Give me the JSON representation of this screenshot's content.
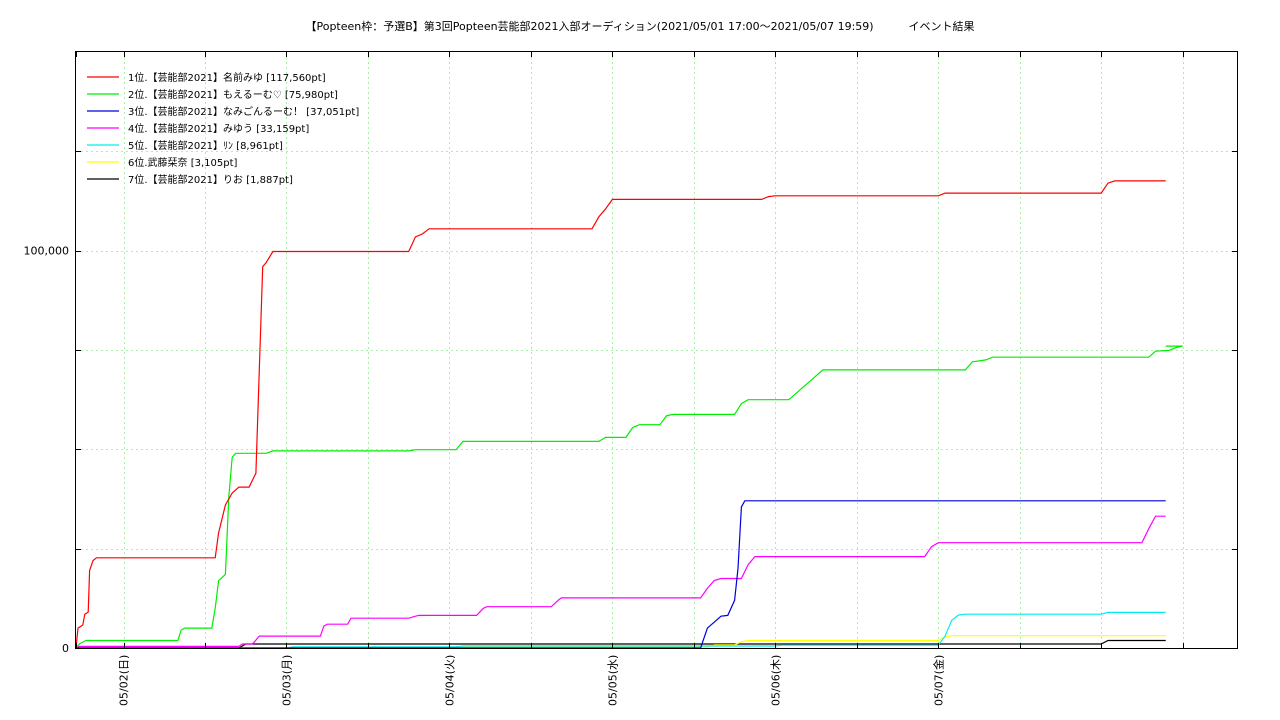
{
  "chart_data": {
    "type": "line",
    "title": "【Popteen枠：予選B】第3回Popteen芸能部2021入部オーディション(2021/05/01 17:00〜2021/05/07 19:59)          イベント結果",
    "xlabel": "",
    "ylabel": "",
    "x_unit": "hours since 2021/05/01 17:00",
    "xlim": [
      0,
      171
    ],
    "ylim": [
      0,
      150000
    ],
    "y_ticks": [
      {
        "value": 0,
        "label": "0"
      },
      {
        "value": 100000,
        "label": "100,000"
      }
    ],
    "y_minor_ticks": [
      25000,
      50000,
      75000,
      125000
    ],
    "x_ticks": [
      {
        "value": 7,
        "label": "05/02(日)"
      },
      {
        "value": 31,
        "label": "05/03(月)"
      },
      {
        "value": 55,
        "label": "05/04(火)"
      },
      {
        "value": 79,
        "label": "05/05(水)"
      },
      {
        "value": 103,
        "label": "05/06(木)"
      },
      {
        "value": 127,
        "label": "05/07(金)"
      }
    ],
    "x_minor_ticks": [
      0,
      19,
      43,
      67,
      91,
      115,
      139,
      151,
      163
    ],
    "grid": true,
    "legend_position": "top-left",
    "series": [
      {
        "name": "1位.【芸能部2021】名前みゆ [117,560pt]",
        "color": "#ff0000",
        "points": [
          [
            0,
            0
          ],
          [
            0.3,
            5000
          ],
          [
            1,
            5800
          ],
          [
            1.3,
            8500
          ],
          [
            1.8,
            9000
          ],
          [
            2,
            19500
          ],
          [
            2.5,
            22000
          ],
          [
            3,
            22700
          ],
          [
            20.5,
            22700
          ],
          [
            21,
            29000
          ],
          [
            22,
            36000
          ],
          [
            23,
            39000
          ],
          [
            24,
            40500
          ],
          [
            25.5,
            40500
          ],
          [
            26.5,
            44000
          ],
          [
            27,
            70000
          ],
          [
            27.5,
            96000
          ],
          [
            28,
            97000
          ],
          [
            29,
            99800
          ],
          [
            49,
            99800
          ],
          [
            50,
            103500
          ],
          [
            51,
            104200
          ],
          [
            52,
            105500
          ],
          [
            76,
            105500
          ],
          [
            77,
            108500
          ],
          [
            78,
            110500
          ],
          [
            79,
            112900
          ],
          [
            101,
            112900
          ],
          [
            102,
            113600
          ],
          [
            103,
            113800
          ],
          [
            127,
            113800
          ],
          [
            128,
            114500
          ],
          [
            151,
            114500
          ],
          [
            152,
            117000
          ],
          [
            153,
            117560
          ],
          [
            160.5,
            117560
          ]
        ]
      },
      {
        "name": "2位.【芸能部2021】もえるーむ♡ [75,980pt]",
        "color": "#00ee00",
        "points": [
          [
            0,
            0
          ],
          [
            0.5,
            1000
          ],
          [
            1,
            1500
          ],
          [
            1.5,
            1900
          ],
          [
            15,
            1900
          ],
          [
            15.5,
            4500
          ],
          [
            16,
            5000
          ],
          [
            20,
            5000
          ],
          [
            20.5,
            10000
          ],
          [
            21,
            17000
          ],
          [
            22,
            18500
          ],
          [
            22.5,
            38000
          ],
          [
            23,
            48000
          ],
          [
            23.5,
            49000
          ],
          [
            28,
            49000
          ],
          [
            29,
            49600
          ],
          [
            49,
            49600
          ],
          [
            50,
            49900
          ],
          [
            56,
            49900
          ],
          [
            57,
            52000
          ],
          [
            77,
            52000
          ],
          [
            78,
            53000
          ],
          [
            81,
            53000
          ],
          [
            82,
            55500
          ],
          [
            83,
            56200
          ],
          [
            86,
            56200
          ],
          [
            87,
            58500
          ],
          [
            88,
            58800
          ],
          [
            97,
            58800
          ],
          [
            98,
            61500
          ],
          [
            99,
            62500
          ],
          [
            105,
            62500
          ],
          [
            106,
            64000
          ],
          [
            107,
            65500
          ],
          [
            108,
            67000
          ],
          [
            109,
            68500
          ],
          [
            110,
            70000
          ],
          [
            131,
            70000
          ],
          [
            132,
            72000
          ],
          [
            134,
            72500
          ],
          [
            135,
            73200
          ],
          [
            158,
            73200
          ],
          [
            159,
            74700
          ],
          [
            161,
            74900
          ],
          [
            162,
            75600
          ],
          [
            163,
            75980
          ],
          [
            160.5,
            75980
          ]
        ]
      },
      {
        "name": "3位.【芸能部2021】なみごんるーむ！ [37,051pt]",
        "color": "#0000dd",
        "points": [
          [
            0,
            0
          ],
          [
            92,
            0
          ],
          [
            93,
            5000
          ],
          [
            94,
            6500
          ],
          [
            95,
            8000
          ],
          [
            96,
            8200
          ],
          [
            97,
            12000
          ],
          [
            97.5,
            20000
          ],
          [
            98,
            35500
          ],
          [
            98.5,
            37051
          ],
          [
            160.5,
            37051
          ]
        ]
      },
      {
        "name": "4位.【芸能部2021】みゆう [33,159pt]",
        "color": "#ff00ff",
        "points": [
          [
            0,
            0
          ],
          [
            0.5,
            400
          ],
          [
            24,
            400
          ],
          [
            24.5,
            1000
          ],
          [
            26,
            1000
          ],
          [
            26.5,
            2000
          ],
          [
            27,
            3000
          ],
          [
            36,
            3000
          ],
          [
            36.5,
            5500
          ],
          [
            37,
            6000
          ],
          [
            40,
            6000
          ],
          [
            40.5,
            7500
          ],
          [
            49,
            7500
          ],
          [
            50,
            8000
          ],
          [
            50.5,
            8200
          ],
          [
            59,
            8200
          ],
          [
            60,
            10000
          ],
          [
            60.5,
            10400
          ],
          [
            70,
            10400
          ],
          [
            71,
            12000
          ],
          [
            71.5,
            12600
          ],
          [
            92,
            12600
          ],
          [
            93,
            15000
          ],
          [
            94,
            17000
          ],
          [
            95,
            17500
          ],
          [
            98,
            17500
          ],
          [
            99,
            21000
          ],
          [
            100,
            23000
          ],
          [
            125,
            23000
          ],
          [
            126,
            25500
          ],
          [
            127,
            26500
          ],
          [
            157,
            26500
          ],
          [
            158,
            30000
          ],
          [
            159,
            33159
          ],
          [
            160.5,
            33159
          ]
        ]
      },
      {
        "name": "5位.【芸能部2021】ﾘﾝ [8,961pt]",
        "color": "#00eeee",
        "points": [
          [
            0,
            0
          ],
          [
            31,
            0
          ],
          [
            32,
            300
          ],
          [
            56,
            300
          ],
          [
            57,
            500
          ],
          [
            103,
            500
          ],
          [
            104,
            700
          ],
          [
            127,
            700
          ],
          [
            128,
            3000
          ],
          [
            129,
            7000
          ],
          [
            130,
            8300
          ],
          [
            131,
            8500
          ],
          [
            151,
            8500
          ],
          [
            152,
            8961
          ],
          [
            160.5,
            8961
          ]
        ]
      },
      {
        "name": "6位.武藤栞奈 [3,105pt]",
        "color": "#ffff00",
        "points": [
          [
            0,
            0
          ],
          [
            56,
            0
          ],
          [
            57,
            200
          ],
          [
            93,
            200
          ],
          [
            94,
            800
          ],
          [
            97,
            800
          ],
          [
            98,
            1500
          ],
          [
            99,
            1900
          ],
          [
            127,
            1900
          ],
          [
            128,
            2800
          ],
          [
            129,
            3105
          ],
          [
            160.5,
            3105
          ]
        ]
      },
      {
        "name": "7位.【芸能部2021】りお [1,887pt]",
        "color": "#000000",
        "points": [
          [
            0,
            0
          ],
          [
            24,
            0
          ],
          [
            25,
            1000
          ],
          [
            151,
            1000
          ],
          [
            152,
            1887
          ],
          [
            160.5,
            1887
          ]
        ]
      }
    ]
  }
}
